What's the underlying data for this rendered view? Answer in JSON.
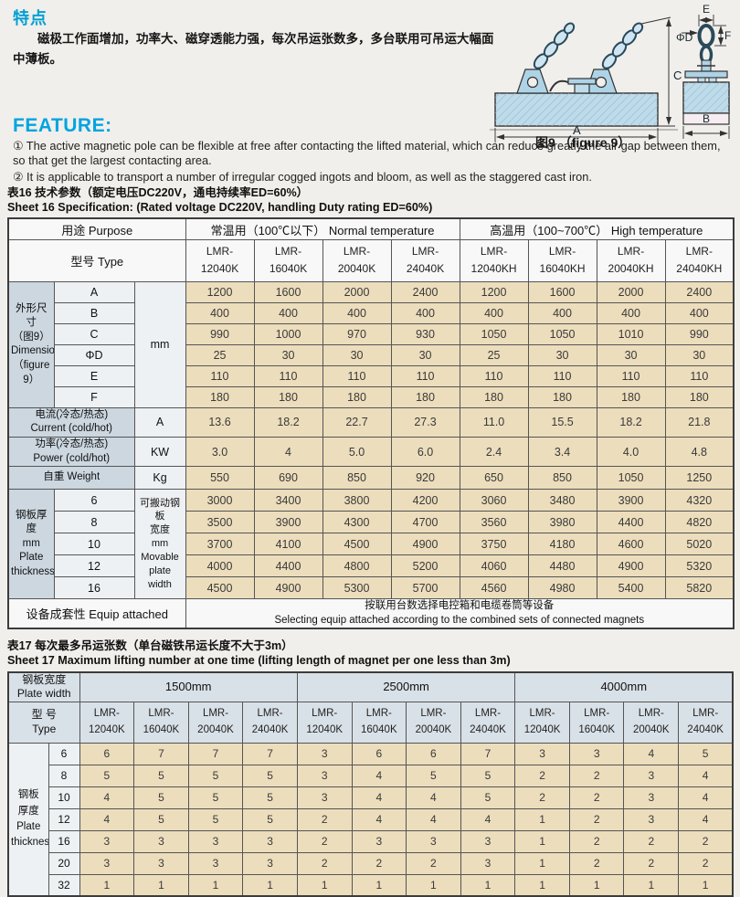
{
  "page": {
    "cn_title": "特点",
    "cn_body": "　　磁极工作面增加，功率大、磁穿透能力强，每次吊运张数多，多台联用可吊运大幅面\n中薄板。",
    "en_title": "FEATURE:",
    "items": [
      "① The active magnetic pole can be flexible at free after contacting the lifted material, which can reduce greatly the air gap between them, so that get the largest contacting area.",
      "② It is applicable to transport a number of irregular cogged ingots and bloom, as well as the staggered cast iron."
    ]
  },
  "figure": {
    "caption": "图9 （figure 9）",
    "labels": {
      "A": "A",
      "B": "B",
      "C": "C",
      "D": "ΦD",
      "E": "E",
      "F": "F"
    }
  },
  "table16": {
    "title_cn": "表16 技术参数（额定电压DC220V，通电持续率ED=60%）",
    "title_en": "Sheet 16 Specification:  (Rated voltage DC220V, handling Duty rating ED=60%)",
    "purpose_label": "用途   Purpose",
    "normal_header": "常温用（100℃以下）  Normal temperature",
    "high_header": "高温用（100~700℃）  High temperature",
    "type_label": "型号   Type",
    "models": [
      "LMR-\n12040K",
      "LMR-\n16040K",
      "LMR-\n20040K",
      "LMR-\n24040K",
      "LMR-\n12040KH",
      "LMR-\n16040KH",
      "LMR-\n20040KH",
      "LMR-\n24040KH"
    ],
    "dimension": {
      "group_label": "外形尺寸\n（图9）\nDimension\n（figure 9）",
      "unit": "mm",
      "rows": [
        {
          "label": "A",
          "values": [
            "1200",
            "1600",
            "2000",
            "2400",
            "1200",
            "1600",
            "2000",
            "2400"
          ]
        },
        {
          "label": "B",
          "values": [
            "400",
            "400",
            "400",
            "400",
            "400",
            "400",
            "400",
            "400"
          ]
        },
        {
          "label": "C",
          "values": [
            "990",
            "1000",
            "970",
            "930",
            "1050",
            "1050",
            "1010",
            "990"
          ]
        },
        {
          "label": "ΦD",
          "values": [
            "25",
            "30",
            "30",
            "30",
            "25",
            "30",
            "30",
            "30"
          ]
        },
        {
          "label": "E",
          "values": [
            "110",
            "110",
            "110",
            "110",
            "110",
            "110",
            "110",
            "110"
          ]
        },
        {
          "label": "F",
          "values": [
            "180",
            "180",
            "180",
            "180",
            "180",
            "180",
            "180",
            "180"
          ]
        }
      ]
    },
    "current": {
      "label": "电流(冷态/热态)\nCurrent (cold/hot)",
      "unit": "A",
      "values": [
        "13.6",
        "18.2",
        "22.7",
        "27.3",
        "11.0",
        "15.5",
        "18.2",
        "21.8"
      ]
    },
    "power": {
      "label": "功率(冷态/热态)\nPower (cold/hot)",
      "unit": "KW",
      "values": [
        "3.0",
        "4",
        "5.0",
        "6.0",
        "2.4",
        "3.4",
        "4.0",
        "4.8"
      ]
    },
    "weight": {
      "label": "自重   Weight",
      "unit": "Kg",
      "values": [
        "550",
        "690",
        "850",
        "920",
        "650",
        "850",
        "1050",
        "1250"
      ]
    },
    "plate": {
      "group_label": "钢板厚度\nmm\nPlate\nthickness",
      "movable_label": "可搬动钢板\n宽度\nmm\nMovable\nplate width",
      "rows": [
        {
          "thickness": "6",
          "values": [
            "3000",
            "3400",
            "3800",
            "4200",
            "3060",
            "3480",
            "3900",
            "4320"
          ]
        },
        {
          "thickness": "8",
          "values": [
            "3500",
            "3900",
            "4300",
            "4700",
            "3560",
            "3980",
            "4400",
            "4820"
          ]
        },
        {
          "thickness": "10",
          "values": [
            "3700",
            "4100",
            "4500",
            "4900",
            "3750",
            "4180",
            "4600",
            "5020"
          ]
        },
        {
          "thickness": "12",
          "values": [
            "4000",
            "4400",
            "4800",
            "5200",
            "4060",
            "4480",
            "4900",
            "5320"
          ]
        },
        {
          "thickness": "16",
          "values": [
            "4500",
            "4900",
            "5300",
            "5700",
            "4560",
            "4980",
            "5400",
            "5820"
          ]
        }
      ]
    },
    "equip": {
      "label": "设备成套性  Equip attached",
      "note": "按联用台数选择电控箱和电缆卷筒等设备\nSelecting equip attached according to the combined sets of connected magnets"
    }
  },
  "table17": {
    "title_cn": "表17 每次最多吊运张数（单台磁铁吊运长度不大于3m）",
    "title_en": "Sheet 17 Maximum lifting number at one time (lifting length of magnet per one less than 3m)",
    "plate_width_label": "钢板宽度\nPlate width",
    "width_groups": [
      "1500mm",
      "2500mm",
      "4000mm"
    ],
    "type_label": "型 号\nType",
    "models": [
      "LMR-\n12040K",
      "LMR-\n16040K",
      "LMR-\n20040K",
      "LMR-\n24040K",
      "LMR-\n12040K",
      "LMR-\n16040K",
      "LMR-\n20040K",
      "LMR-\n24040K",
      "LMR-\n12040K",
      "LMR-\n16040K",
      "LMR-\n20040K",
      "LMR-\n24040K"
    ],
    "row_group_label": "钢板\n厚度\nPlate\nthickness",
    "rows": [
      {
        "thickness": "6",
        "values": [
          "6",
          "7",
          "7",
          "7",
          "3",
          "6",
          "6",
          "7",
          "3",
          "3",
          "4",
          "5"
        ]
      },
      {
        "thickness": "8",
        "values": [
          "5",
          "5",
          "5",
          "5",
          "3",
          "4",
          "5",
          "5",
          "2",
          "2",
          "3",
          "4"
        ]
      },
      {
        "thickness": "10",
        "values": [
          "4",
          "5",
          "5",
          "5",
          "3",
          "4",
          "4",
          "5",
          "2",
          "2",
          "3",
          "4"
        ]
      },
      {
        "thickness": "12",
        "values": [
          "4",
          "5",
          "5",
          "5",
          "2",
          "4",
          "4",
          "4",
          "1",
          "2",
          "3",
          "4"
        ]
      },
      {
        "thickness": "16",
        "values": [
          "3",
          "3",
          "3",
          "3",
          "2",
          "3",
          "3",
          "3",
          "1",
          "2",
          "2",
          "2"
        ]
      },
      {
        "thickness": "20",
        "values": [
          "3",
          "3",
          "3",
          "3",
          "2",
          "2",
          "2",
          "3",
          "1",
          "2",
          "2",
          "2"
        ]
      },
      {
        "thickness": "32",
        "values": [
          "1",
          "1",
          "1",
          "1",
          "1",
          "1",
          "1",
          "1",
          "1",
          "1",
          "1",
          "1"
        ]
      }
    ]
  },
  "colors": {
    "accent_cyan": "#00a4e0",
    "heading_blue": "#00a0d4",
    "cell_beige": "#ecddbc",
    "cell_bluegrey": "#ccd7e0",
    "header_bluegrey": "#d9e1e8",
    "diagram_blue": "#bedbe9"
  }
}
